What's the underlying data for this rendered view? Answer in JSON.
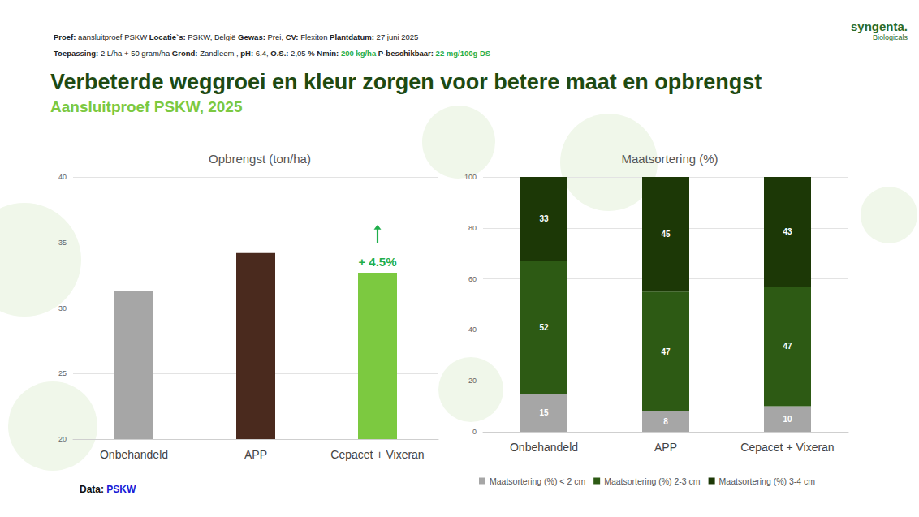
{
  "header": {
    "lines": [
      [
        {
          "label": "Proef:",
          "value": "aansluitproef PSKW"
        },
        {
          "label": "Locatie`s:",
          "value": "PSKW, België"
        },
        {
          "label": "Gewas:",
          "value": "Prei,"
        },
        {
          "label": "CV:",
          "value": "Flexiton"
        },
        {
          "label": "Plantdatum:",
          "value": "27 juni 2025"
        }
      ],
      [
        {
          "label": "Toepassing:",
          "value": "2 L/ha  + 50 gram/ha"
        },
        {
          "label": "Grond:",
          "value": "Zandleem ,"
        },
        {
          "label": "pH:",
          "value": "6.4,"
        },
        {
          "label": "O.S.:",
          "value": "2,05"
        },
        {
          "label": "% Nmin:",
          "value": "200 kg/ha",
          "color": "#1fae4b"
        },
        {
          "label": "P-beschikbaar:",
          "value": "22 mg/100g DS",
          "color": "#1fae4b"
        }
      ]
    ]
  },
  "title": "Verbeterde weggroei en kleur zorgen voor betere maat en opbrengst",
  "subtitle": "Aansluitproef PSKW, 2025",
  "logo": {
    "name": "syngenta.",
    "sub": "Biologicals"
  },
  "source": {
    "label": "Data:",
    "value": "PSKW"
  },
  "chart_data": [
    {
      "type": "bar",
      "title": "Opbrengst (ton/ha)",
      "categories": [
        "Onbehandeld",
        "APP",
        "Cepacet + Vixeran"
      ],
      "values": [
        31.3,
        34.2,
        32.7
      ],
      "colors": [
        "#a6a6a6",
        "#4a2a1e",
        "#7cc940"
      ],
      "ylim": [
        20,
        40
      ],
      "yticks": [
        20,
        25,
        30,
        35,
        40
      ],
      "grid": true,
      "annotations": [
        {
          "category": "Cepacet + Vixeran",
          "text": "+ 4.5%"
        }
      ]
    },
    {
      "type": "bar",
      "title": "Maatsortering (%)",
      "stacked": true,
      "data_labels": true,
      "legend": "bottom",
      "categories": [
        "Onbehandeld",
        "APP",
        "Cepacet + Vixeran"
      ],
      "series": [
        {
          "name": "Maatsortering (%) < 2 cm",
          "color": "#a6a6a6",
          "values": [
            15,
            8,
            10
          ]
        },
        {
          "name": "Maatsortering (%) 2-3 cm",
          "color": "#2d5a14",
          "values": [
            52,
            47,
            47
          ]
        },
        {
          "name": "Maatsortering (%) 3-4 cm",
          "color": "#1c3806",
          "values": [
            33,
            45,
            43
          ]
        }
      ],
      "ylim": [
        0,
        100
      ],
      "yticks": [
        0,
        20,
        40,
        60,
        80,
        100
      ],
      "grid": true
    }
  ]
}
